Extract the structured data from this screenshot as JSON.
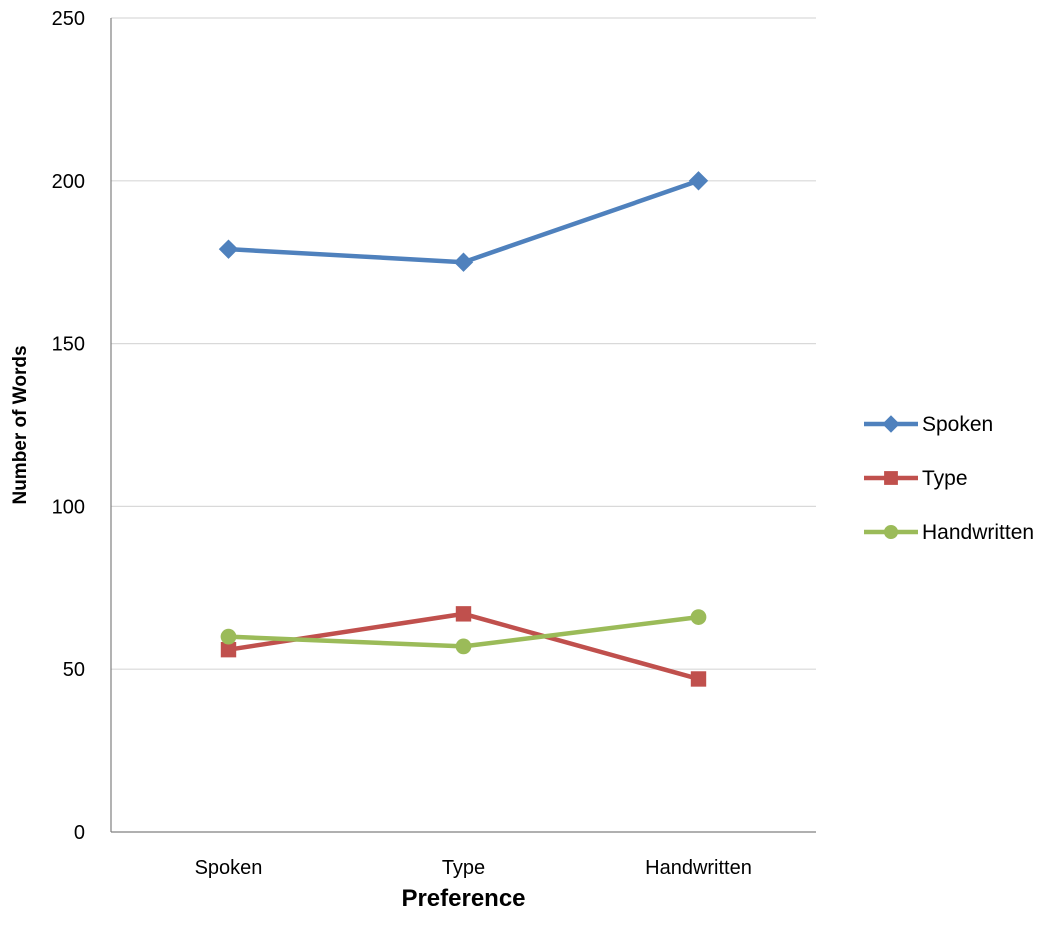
{
  "chart_data": {
    "type": "line",
    "title": "",
    "xlabel": "Preference",
    "ylabel": "Number of Words",
    "categories": [
      "Spoken",
      "Type",
      "Handwritten"
    ],
    "ylim": [
      0,
      250
    ],
    "yticks": [
      0,
      50,
      100,
      150,
      200,
      250
    ],
    "grid": true,
    "legend_position": "right",
    "series": [
      {
        "name": "Spoken",
        "values": [
          179,
          175,
          200
        ],
        "color": "#4F81BD",
        "marker": "diamond"
      },
      {
        "name": "Type",
        "values": [
          56,
          67,
          47
        ],
        "color": "#C0504D",
        "marker": "square"
      },
      {
        "name": "Handwritten",
        "values": [
          60,
          57,
          66
        ],
        "color": "#9BBB59",
        "marker": "circle"
      }
    ]
  }
}
